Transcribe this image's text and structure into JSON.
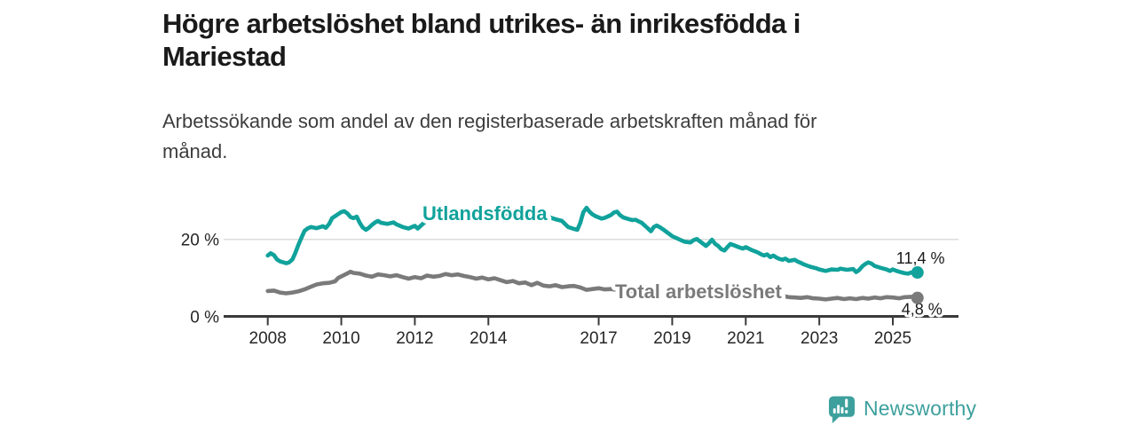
{
  "colors": {
    "brand": "#3da09d",
    "teal": "#10a29b",
    "gray": "#7a7a7a",
    "axis": "#3a3a3a",
    "grid": "#dcdcdc",
    "label_text": "#1a1a1a"
  },
  "header": {
    "title": "Högre arbetslöshet bland utrikes- än inrikesfödda i Mariestad",
    "title_lines": [
      "Högre arbetslöshet bland utrikes- än inrikesfödda i",
      "Mariestad"
    ],
    "subtitle": "Arbetssökande som andel av den registerbaserade arbetskraften månad för månad.",
    "subtitle_lines": [
      "Arbetssökande som andel av den registerbaserade arbetskraften månad för",
      "månad."
    ]
  },
  "footer": {
    "brand": "Newsworthy"
  },
  "chart_data": {
    "type": "line",
    "title": "Högre arbetslöshet bland utrikes- än inrikesfödda i Mariestad",
    "subtitle": "Arbetssökande som andel av den registerbaserade arbetskraften månad för månad.",
    "xlabel": "",
    "ylabel": "",
    "x_unit": "year (monthly data)",
    "y_unit": "%",
    "x_ticks": [
      2008,
      2010,
      2012,
      2014,
      2017,
      2019,
      2021,
      2023,
      2025
    ],
    "y_ticks": [
      {
        "value": 20,
        "label": "20 %"
      },
      {
        "value": 0,
        "label": "0 %"
      }
    ],
    "ylim": [
      0,
      30
    ],
    "x_range": [
      2008.0,
      2025.67
    ],
    "grid": "single horizontal gridline at 20 %",
    "legend_position": "inline labels on lines",
    "series": [
      {
        "name": "Utlandsfödda",
        "color": "#10a29b",
        "end_label": "11,4 %",
        "end_value": 11.4,
        "points": [
          [
            2008.0,
            15.8
          ],
          [
            2008.08,
            16.4
          ],
          [
            2008.17,
            15.9
          ],
          [
            2008.25,
            14.8
          ],
          [
            2008.33,
            14.3
          ],
          [
            2008.5,
            13.8
          ],
          [
            2008.58,
            14.0
          ],
          [
            2008.67,
            14.8
          ],
          [
            2008.75,
            16.5
          ],
          [
            2008.83,
            18.5
          ],
          [
            2008.92,
            20.5
          ],
          [
            2009.0,
            22.2
          ],
          [
            2009.08,
            22.8
          ],
          [
            2009.17,
            23.2
          ],
          [
            2009.33,
            22.9
          ],
          [
            2009.5,
            23.4
          ],
          [
            2009.58,
            23.0
          ],
          [
            2009.67,
            24.0
          ],
          [
            2009.75,
            25.5
          ],
          [
            2009.92,
            26.6
          ],
          [
            2010.0,
            27.1
          ],
          [
            2010.08,
            27.3
          ],
          [
            2010.17,
            26.7
          ],
          [
            2010.25,
            25.8
          ],
          [
            2010.33,
            25.5
          ],
          [
            2010.42,
            25.9
          ],
          [
            2010.5,
            24.3
          ],
          [
            2010.58,
            23.1
          ],
          [
            2010.67,
            22.5
          ],
          [
            2010.75,
            23.0
          ],
          [
            2010.83,
            23.7
          ],
          [
            2010.92,
            24.4
          ],
          [
            2011.0,
            24.8
          ],
          [
            2011.08,
            24.3
          ],
          [
            2011.25,
            24.0
          ],
          [
            2011.42,
            24.4
          ],
          [
            2011.5,
            23.9
          ],
          [
            2011.67,
            23.2
          ],
          [
            2011.83,
            22.8
          ],
          [
            2011.92,
            23.2
          ],
          [
            2012.0,
            23.5
          ],
          [
            2012.08,
            22.8
          ],
          [
            2012.25,
            24.3
          ],
          [
            2012.42,
            25.2
          ],
          [
            2012.5,
            25.6
          ],
          [
            2012.58,
            25.1
          ],
          [
            2012.75,
            25.4
          ],
          [
            2012.92,
            25.9
          ],
          [
            2013.0,
            25.3
          ],
          [
            2013.17,
            25.8
          ],
          [
            2013.33,
            25.2
          ],
          [
            2013.5,
            25.7
          ],
          [
            2013.67,
            25.3
          ],
          [
            2013.83,
            26.0
          ],
          [
            2014.0,
            25.5
          ],
          [
            2014.17,
            26.1
          ],
          [
            2014.33,
            25.7
          ],
          [
            2014.5,
            26.2
          ],
          [
            2014.67,
            25.8
          ],
          [
            2014.83,
            26.4
          ],
          [
            2015.0,
            26.0
          ],
          [
            2015.17,
            26.6
          ],
          [
            2015.33,
            25.9
          ],
          [
            2015.5,
            26.2
          ],
          [
            2015.67,
            25.7
          ],
          [
            2015.83,
            25.2
          ],
          [
            2016.0,
            24.8
          ],
          [
            2016.08,
            24.0
          ],
          [
            2016.17,
            23.2
          ],
          [
            2016.33,
            22.7
          ],
          [
            2016.42,
            22.5
          ],
          [
            2016.5,
            24.3
          ],
          [
            2016.58,
            27.0
          ],
          [
            2016.67,
            28.2
          ],
          [
            2016.75,
            27.2
          ],
          [
            2016.83,
            26.5
          ],
          [
            2016.92,
            26.0
          ],
          [
            2017.0,
            25.7
          ],
          [
            2017.08,
            25.4
          ],
          [
            2017.17,
            25.6
          ],
          [
            2017.33,
            26.3
          ],
          [
            2017.42,
            27.0
          ],
          [
            2017.5,
            27.2
          ],
          [
            2017.58,
            26.3
          ],
          [
            2017.67,
            25.7
          ],
          [
            2017.83,
            25.2
          ],
          [
            2017.92,
            25.0
          ],
          [
            2018.0,
            25.1
          ],
          [
            2018.08,
            24.7
          ],
          [
            2018.17,
            24.3
          ],
          [
            2018.33,
            22.9
          ],
          [
            2018.42,
            22.1
          ],
          [
            2018.5,
            23.2
          ],
          [
            2018.58,
            23.6
          ],
          [
            2018.67,
            23.1
          ],
          [
            2018.75,
            22.6
          ],
          [
            2018.92,
            21.4
          ],
          [
            2019.0,
            20.8
          ],
          [
            2019.17,
            20.1
          ],
          [
            2019.33,
            19.4
          ],
          [
            2019.5,
            19.2
          ],
          [
            2019.58,
            19.8
          ],
          [
            2019.67,
            20.1
          ],
          [
            2019.75,
            19.5
          ],
          [
            2019.92,
            18.3
          ],
          [
            2020.0,
            19.0
          ],
          [
            2020.08,
            19.9
          ],
          [
            2020.17,
            18.8
          ],
          [
            2020.25,
            18.3
          ],
          [
            2020.33,
            17.5
          ],
          [
            2020.42,
            17.1
          ],
          [
            2020.5,
            18.0
          ],
          [
            2020.58,
            18.8
          ],
          [
            2020.67,
            18.5
          ],
          [
            2020.83,
            17.9
          ],
          [
            2020.92,
            17.6
          ],
          [
            2021.0,
            18.0
          ],
          [
            2021.08,
            17.6
          ],
          [
            2021.17,
            17.2
          ],
          [
            2021.33,
            16.6
          ],
          [
            2021.42,
            16.1
          ],
          [
            2021.5,
            15.8
          ],
          [
            2021.58,
            16.1
          ],
          [
            2021.67,
            15.4
          ],
          [
            2021.75,
            15.8
          ],
          [
            2021.83,
            15.3
          ],
          [
            2021.92,
            14.9
          ],
          [
            2022.0,
            14.7
          ],
          [
            2022.08,
            15.0
          ],
          [
            2022.17,
            14.4
          ],
          [
            2022.33,
            14.7
          ],
          [
            2022.42,
            14.2
          ],
          [
            2022.5,
            13.9
          ],
          [
            2022.58,
            13.5
          ],
          [
            2022.75,
            12.9
          ],
          [
            2022.92,
            12.5
          ],
          [
            2023.0,
            12.2
          ],
          [
            2023.08,
            12.0
          ],
          [
            2023.17,
            11.8
          ],
          [
            2023.33,
            12.2
          ],
          [
            2023.5,
            12.1
          ],
          [
            2023.58,
            12.4
          ],
          [
            2023.75,
            12.1
          ],
          [
            2023.92,
            12.3
          ],
          [
            2024.0,
            11.5
          ],
          [
            2024.08,
            12.0
          ],
          [
            2024.17,
            13.0
          ],
          [
            2024.25,
            13.6
          ],
          [
            2024.33,
            14.0
          ],
          [
            2024.42,
            13.7
          ],
          [
            2024.5,
            13.1
          ],
          [
            2024.67,
            12.6
          ],
          [
            2024.83,
            12.2
          ],
          [
            2024.92,
            11.8
          ],
          [
            2025.0,
            12.2
          ],
          [
            2025.08,
            11.9
          ],
          [
            2025.17,
            11.6
          ],
          [
            2025.33,
            11.2
          ],
          [
            2025.42,
            11.1
          ],
          [
            2025.5,
            11.4
          ],
          [
            2025.58,
            11.2
          ],
          [
            2025.67,
            11.4
          ]
        ]
      },
      {
        "name": "Total arbetslöshet",
        "color": "#7a7a7a",
        "end_label": "4,8 %",
        "end_value": 4.8,
        "points": [
          [
            2008.0,
            6.6
          ],
          [
            2008.17,
            6.7
          ],
          [
            2008.33,
            6.2
          ],
          [
            2008.5,
            6.0
          ],
          [
            2008.67,
            6.2
          ],
          [
            2008.83,
            6.5
          ],
          [
            2009.0,
            7.0
          ],
          [
            2009.17,
            7.7
          ],
          [
            2009.33,
            8.3
          ],
          [
            2009.5,
            8.6
          ],
          [
            2009.67,
            8.7
          ],
          [
            2009.83,
            9.1
          ],
          [
            2009.92,
            10.0
          ],
          [
            2010.0,
            10.4
          ],
          [
            2010.17,
            11.2
          ],
          [
            2010.25,
            11.6
          ],
          [
            2010.33,
            11.3
          ],
          [
            2010.5,
            11.1
          ],
          [
            2010.67,
            10.6
          ],
          [
            2010.83,
            10.3
          ],
          [
            2011.0,
            10.9
          ],
          [
            2011.17,
            10.7
          ],
          [
            2011.33,
            10.4
          ],
          [
            2011.5,
            10.7
          ],
          [
            2011.67,
            10.2
          ],
          [
            2011.83,
            9.8
          ],
          [
            2012.0,
            10.2
          ],
          [
            2012.17,
            9.9
          ],
          [
            2012.33,
            10.6
          ],
          [
            2012.5,
            10.3
          ],
          [
            2012.67,
            10.5
          ],
          [
            2012.83,
            11.0
          ],
          [
            2013.0,
            10.7
          ],
          [
            2013.17,
            10.9
          ],
          [
            2013.33,
            10.5
          ],
          [
            2013.5,
            10.2
          ],
          [
            2013.67,
            9.8
          ],
          [
            2013.83,
            10.1
          ],
          [
            2014.0,
            9.6
          ],
          [
            2014.17,
            9.9
          ],
          [
            2014.33,
            9.4
          ],
          [
            2014.5,
            8.9
          ],
          [
            2014.67,
            9.2
          ],
          [
            2014.83,
            8.6
          ],
          [
            2015.0,
            8.8
          ],
          [
            2015.17,
            8.1
          ],
          [
            2015.33,
            8.7
          ],
          [
            2015.5,
            8.0
          ],
          [
            2015.67,
            7.8
          ],
          [
            2015.83,
            8.1
          ],
          [
            2016.0,
            7.6
          ],
          [
            2016.17,
            7.8
          ],
          [
            2016.33,
            7.9
          ],
          [
            2016.5,
            7.5
          ],
          [
            2016.67,
            6.9
          ],
          [
            2016.83,
            7.1
          ],
          [
            2017.0,
            7.3
          ],
          [
            2017.17,
            7.0
          ],
          [
            2017.33,
            7.1
          ],
          [
            2017.5,
            6.9
          ],
          [
            2017.75,
            6.7
          ],
          [
            2018.0,
            6.6
          ],
          [
            2018.25,
            6.4
          ],
          [
            2018.5,
            6.3
          ],
          [
            2018.75,
            6.2
          ],
          [
            2019.0,
            6.1
          ],
          [
            2019.25,
            6.0
          ],
          [
            2019.5,
            6.0
          ],
          [
            2019.75,
            6.1
          ],
          [
            2020.0,
            6.3
          ],
          [
            2020.25,
            6.5
          ],
          [
            2020.5,
            6.6
          ],
          [
            2020.75,
            6.4
          ],
          [
            2021.0,
            6.2
          ],
          [
            2021.25,
            6.0
          ],
          [
            2021.5,
            5.8
          ],
          [
            2021.75,
            5.5
          ],
          [
            2022.0,
            5.3
          ],
          [
            2022.17,
            5.0
          ],
          [
            2022.33,
            4.9
          ],
          [
            2022.5,
            4.8
          ],
          [
            2022.67,
            5.0
          ],
          [
            2022.83,
            4.7
          ],
          [
            2023.0,
            4.6
          ],
          [
            2023.17,
            4.4
          ],
          [
            2023.33,
            4.6
          ],
          [
            2023.5,
            4.8
          ],
          [
            2023.67,
            4.5
          ],
          [
            2023.83,
            4.7
          ],
          [
            2024.0,
            4.5
          ],
          [
            2024.17,
            4.8
          ],
          [
            2024.33,
            4.6
          ],
          [
            2024.5,
            4.9
          ],
          [
            2024.67,
            4.7
          ],
          [
            2024.83,
            5.0
          ],
          [
            2025.0,
            4.9
          ],
          [
            2025.17,
            4.7
          ],
          [
            2025.33,
            5.0
          ],
          [
            2025.5,
            5.1
          ],
          [
            2025.58,
            4.9
          ],
          [
            2025.67,
            4.8
          ]
        ]
      }
    ]
  }
}
